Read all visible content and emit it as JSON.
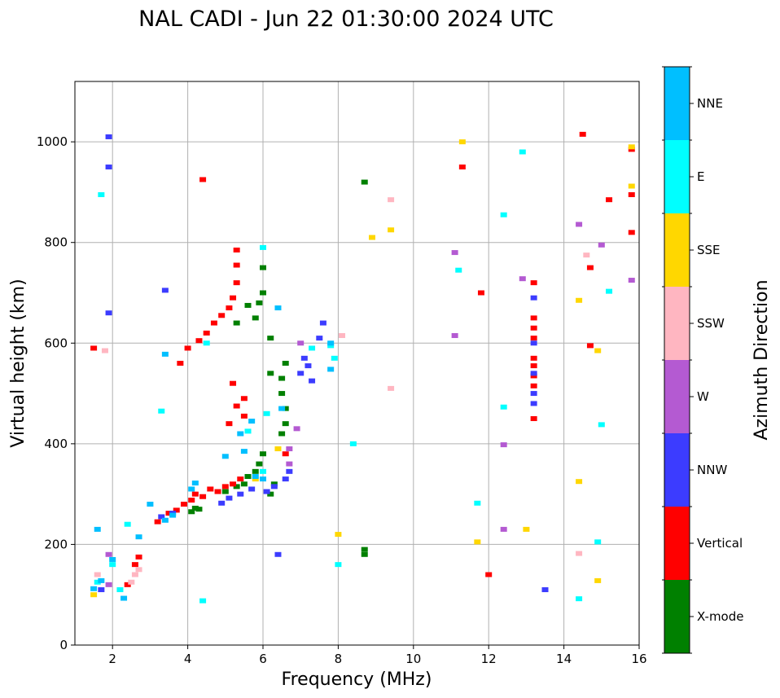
{
  "chart_data": {
    "type": "scatter",
    "title": "NAL CADI - Jun 22 01:30:00 2024 UTC",
    "xlabel": "Frequency (MHz)",
    "ylabel": "Virtual height (km)",
    "xlim": [
      1,
      16
    ],
    "ylim": [
      0,
      1120
    ],
    "xticks": [
      2,
      4,
      6,
      8,
      10,
      12,
      14,
      16
    ],
    "yticks": [
      0,
      200,
      400,
      600,
      800,
      1000
    ],
    "grid": true,
    "colorbar": {
      "label": "Azimuth Direction",
      "position": "right",
      "categories": [
        {
          "name": "X-mode",
          "color": "#008000"
        },
        {
          "name": "Vertical",
          "color": "#ff0000"
        },
        {
          "name": "NNW",
          "color": "#3c3cff"
        },
        {
          "name": "W",
          "color": "#b45ad2"
        },
        {
          "name": "SSW",
          "color": "#ffb6c1"
        },
        {
          "name": "SSE",
          "color": "#ffd700"
        },
        {
          "name": "E",
          "color": "#00ffff"
        },
        {
          "name": "NNE",
          "color": "#00bfff"
        }
      ]
    },
    "series": [
      {
        "name": "X-mode",
        "points": [
          [
            4.1,
            265
          ],
          [
            4.2,
            272
          ],
          [
            4.3,
            270
          ],
          [
            5.0,
            305
          ],
          [
            5.3,
            315
          ],
          [
            5.5,
            320
          ],
          [
            5.6,
            335
          ],
          [
            5.8,
            345
          ],
          [
            5.9,
            360
          ],
          [
            6.0,
            380
          ],
          [
            6.2,
            300
          ],
          [
            6.3,
            320
          ],
          [
            6.5,
            420
          ],
          [
            6.6,
            440
          ],
          [
            6.6,
            470
          ],
          [
            6.5,
            500
          ],
          [
            6.5,
            530
          ],
          [
            6.6,
            560
          ],
          [
            6.2,
            540
          ],
          [
            5.9,
            680
          ],
          [
            6.0,
            700
          ],
          [
            5.8,
            650
          ],
          [
            5.6,
            675
          ],
          [
            6.0,
            750
          ],
          [
            5.3,
            640
          ],
          [
            6.2,
            610
          ],
          [
            8.7,
            920
          ],
          [
            8.7,
            190
          ],
          [
            8.7,
            180
          ]
        ]
      },
      {
        "name": "Vertical",
        "points": [
          [
            3.2,
            245
          ],
          [
            3.5,
            262
          ],
          [
            3.7,
            268
          ],
          [
            3.9,
            280
          ],
          [
            4.1,
            288
          ],
          [
            4.2,
            300
          ],
          [
            4.4,
            295
          ],
          [
            4.6,
            310
          ],
          [
            4.8,
            305
          ],
          [
            5.0,
            315
          ],
          [
            5.2,
            320
          ],
          [
            5.4,
            330
          ],
          [
            4.3,
            605
          ],
          [
            4.5,
            620
          ],
          [
            4.7,
            640
          ],
          [
            4.9,
            655
          ],
          [
            5.1,
            670
          ],
          [
            5.2,
            690
          ],
          [
            5.3,
            720
          ],
          [
            5.3,
            785
          ],
          [
            5.3,
            755
          ],
          [
            5.1,
            440
          ],
          [
            5.3,
            475
          ],
          [
            5.5,
            490
          ],
          [
            5.5,
            455
          ],
          [
            5.2,
            520
          ],
          [
            4.0,
            590
          ],
          [
            3.8,
            560
          ],
          [
            4.4,
            925
          ],
          [
            6.6,
            380
          ],
          [
            2.6,
            160
          ],
          [
            2.7,
            175
          ],
          [
            2.4,
            120
          ],
          [
            11.8,
            700
          ],
          [
            12.0,
            140
          ],
          [
            13.2,
            720
          ],
          [
            13.2,
            650
          ],
          [
            13.2,
            630
          ],
          [
            13.2,
            610
          ],
          [
            13.2,
            570
          ],
          [
            13.2,
            555
          ],
          [
            13.2,
            535
          ],
          [
            13.2,
            515
          ],
          [
            13.2,
            450
          ],
          [
            14.5,
            1015
          ],
          [
            14.7,
            750
          ],
          [
            14.7,
            595
          ],
          [
            15.2,
            885
          ],
          [
            15.8,
            985
          ],
          [
            15.8,
            895
          ],
          [
            15.8,
            820
          ],
          [
            11.3,
            950
          ],
          [
            1.5,
            590
          ]
        ]
      },
      {
        "name": "NNW",
        "points": [
          [
            3.3,
            255
          ],
          [
            3.6,
            262
          ],
          [
            4.9,
            282
          ],
          [
            5.1,
            292
          ],
          [
            5.4,
            300
          ],
          [
            5.7,
            310
          ],
          [
            6.1,
            305
          ],
          [
            6.3,
            315
          ],
          [
            6.6,
            330
          ],
          [
            6.7,
            345
          ],
          [
            7.0,
            540
          ],
          [
            7.1,
            570
          ],
          [
            7.2,
            555
          ],
          [
            7.3,
            525
          ],
          [
            7.5,
            610
          ],
          [
            7.6,
            640
          ],
          [
            6.4,
            180
          ],
          [
            13.2,
            690
          ],
          [
            13.2,
            600
          ],
          [
            13.2,
            540
          ],
          [
            13.2,
            500
          ],
          [
            13.2,
            480
          ],
          [
            13.5,
            110
          ],
          [
            1.9,
            1010
          ],
          [
            1.9,
            950
          ],
          [
            1.9,
            660
          ],
          [
            3.4,
            705
          ],
          [
            1.7,
            110
          ]
        ]
      },
      {
        "name": "W",
        "points": [
          [
            6.7,
            360
          ],
          [
            6.7,
            390
          ],
          [
            7.0,
            600
          ],
          [
            6.9,
            430
          ],
          [
            11.1,
            780
          ],
          [
            11.1,
            615
          ],
          [
            12.4,
            398
          ],
          [
            12.4,
            230
          ],
          [
            12.9,
            728
          ],
          [
            14.4,
            836
          ],
          [
            15.0,
            795
          ],
          [
            15.8,
            725
          ],
          [
            1.9,
            120
          ],
          [
            1.9,
            180
          ]
        ]
      },
      {
        "name": "SSW",
        "points": [
          [
            2.5,
            125
          ],
          [
            2.6,
            140
          ],
          [
            2.7,
            150
          ],
          [
            8.1,
            615
          ],
          [
            9.4,
            885
          ],
          [
            9.4,
            510
          ],
          [
            14.6,
            775
          ],
          [
            14.4,
            182
          ],
          [
            1.6,
            140
          ],
          [
            1.8,
            585
          ]
        ]
      },
      {
        "name": "SSE",
        "points": [
          [
            5.8,
            330
          ],
          [
            6.4,
            390
          ],
          [
            8.0,
            220
          ],
          [
            8.9,
            810
          ],
          [
            9.4,
            825
          ],
          [
            11.3,
            1000
          ],
          [
            11.7,
            205
          ],
          [
            13.0,
            230
          ],
          [
            14.4,
            685
          ],
          [
            14.4,
            325
          ],
          [
            14.9,
            585
          ],
          [
            14.9,
            128
          ],
          [
            15.8,
            990
          ],
          [
            15.8,
            912
          ],
          [
            1.5,
            100
          ]
        ]
      },
      {
        "name": "E",
        "points": [
          [
            1.6,
            125
          ],
          [
            2.0,
            160
          ],
          [
            2.2,
            110
          ],
          [
            2.4,
            240
          ],
          [
            4.4,
            88
          ],
          [
            4.5,
            600
          ],
          [
            5.6,
            425
          ],
          [
            6.0,
            345
          ],
          [
            6.0,
            790
          ],
          [
            6.1,
            460
          ],
          [
            7.8,
            595
          ],
          [
            7.9,
            570
          ],
          [
            7.3,
            590
          ],
          [
            8.0,
            160
          ],
          [
            8.4,
            400
          ],
          [
            11.2,
            745
          ],
          [
            11.7,
            282
          ],
          [
            12.4,
            855
          ],
          [
            12.4,
            473
          ],
          [
            12.9,
            980
          ],
          [
            14.4,
            92
          ],
          [
            14.9,
            205
          ],
          [
            15.0,
            438
          ],
          [
            15.2,
            703
          ],
          [
            3.3,
            465
          ],
          [
            1.7,
            895
          ]
        ]
      },
      {
        "name": "NNE",
        "points": [
          [
            2.0,
            170
          ],
          [
            2.7,
            215
          ],
          [
            3.0,
            280
          ],
          [
            3.4,
            248
          ],
          [
            3.6,
            258
          ],
          [
            4.1,
            310
          ],
          [
            4.2,
            322
          ],
          [
            5.0,
            375
          ],
          [
            5.4,
            420
          ],
          [
            5.5,
            385
          ],
          [
            5.7,
            445
          ],
          [
            5.8,
            335
          ],
          [
            6.0,
            330
          ],
          [
            6.4,
            670
          ],
          [
            6.5,
            470
          ],
          [
            7.8,
            548
          ],
          [
            7.8,
            600
          ],
          [
            1.6,
            230
          ],
          [
            1.7,
            128
          ],
          [
            2.3,
            93
          ],
          [
            3.4,
            578
          ],
          [
            1.5,
            112
          ]
        ]
      }
    ]
  }
}
